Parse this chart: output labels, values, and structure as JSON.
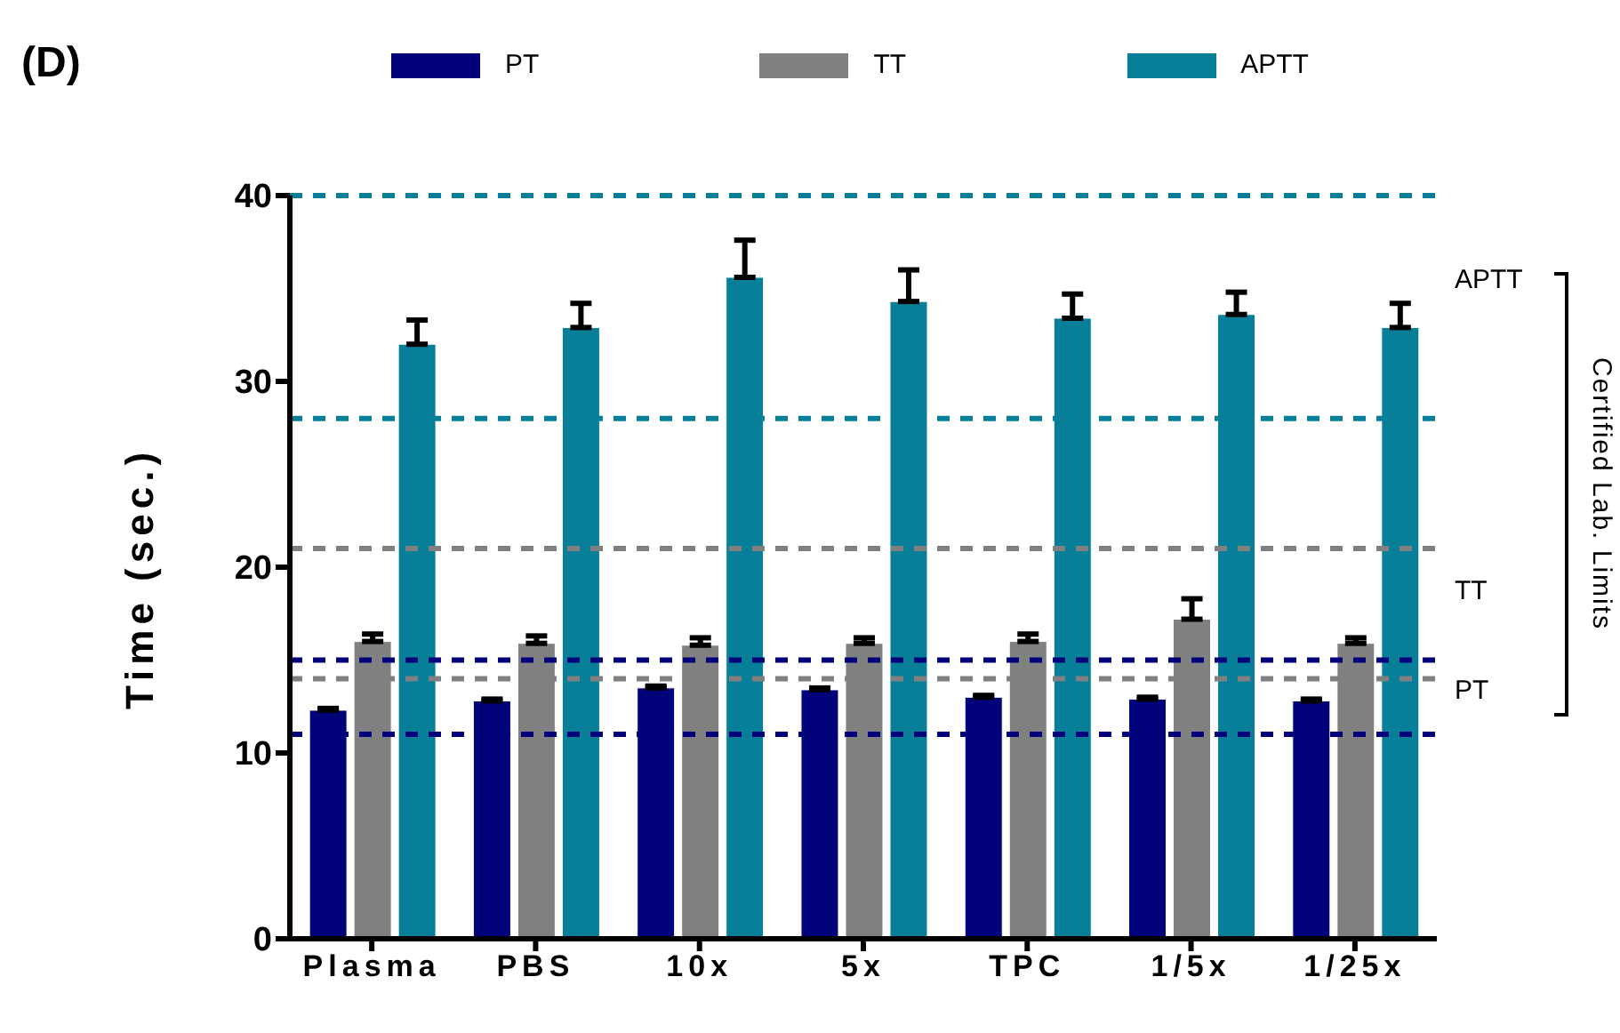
{
  "chart_data": {
    "type": "bar",
    "title": "(D)",
    "ylabel": "Time (sec.)",
    "categories": [
      "Plasma",
      "PBS",
      "10x",
      "5x",
      "TPC",
      "1/5x",
      "1/25x"
    ],
    "series": [
      {
        "name": "PT",
        "color": "#02027a",
        "values": [
          12.3,
          12.8,
          13.5,
          13.4,
          13.0,
          12.9,
          12.8
        ],
        "errors": [
          [
            12.3,
            12.4
          ],
          [
            12.8,
            12.9
          ],
          [
            13.5,
            13.6
          ],
          [
            13.4,
            13.5
          ],
          [
            13.0,
            13.1
          ],
          [
            12.9,
            13.0
          ],
          [
            12.8,
            12.9
          ]
        ]
      },
      {
        "name": "TT",
        "color": "#808080",
        "values": [
          16.0,
          15.9,
          15.8,
          15.9,
          16.0,
          17.2,
          15.9
        ],
        "errors": [
          [
            16.0,
            16.4
          ],
          [
            15.9,
            16.3
          ],
          [
            15.8,
            16.2
          ],
          [
            15.9,
            16.2
          ],
          [
            16.0,
            16.4
          ],
          [
            17.2,
            18.3
          ],
          [
            15.9,
            16.2
          ]
        ]
      },
      {
        "name": "APTT",
        "color": "#087f99",
        "values": [
          32.0,
          32.9,
          35.6,
          34.3,
          33.4,
          33.6,
          32.9
        ],
        "errors": [
          [
            32.0,
            33.3
          ],
          [
            32.9,
            34.2
          ],
          [
            35.6,
            37.6
          ],
          [
            34.3,
            36.0
          ],
          [
            33.4,
            34.7
          ],
          [
            33.6,
            34.8
          ],
          [
            32.9,
            34.2
          ]
        ]
      }
    ],
    "ylim": [
      0,
      40
    ],
    "yticks": [
      0,
      10,
      20,
      30,
      40
    ],
    "legend": "top",
    "ref_lines": [
      {
        "axis": "y",
        "value": 40,
        "color": "#087f99",
        "line_style": "dashed"
      },
      {
        "axis": "y",
        "value": 28,
        "color": "#087f99",
        "line_style": "dashed"
      },
      {
        "axis": "y",
        "value": 21,
        "color": "#808080",
        "line_style": "dashed"
      },
      {
        "axis": "y",
        "value": 14,
        "color": "#808080",
        "line_style": "dashed"
      },
      {
        "axis": "y",
        "value": 15,
        "color": "#02027a",
        "line_style": "dashed"
      },
      {
        "axis": "y",
        "value": 11,
        "color": "#02027a",
        "line_style": "dashed"
      }
    ],
    "annotations": [
      "APTT",
      "TT",
      "PT",
      "Certified Lab. Limits"
    ]
  }
}
